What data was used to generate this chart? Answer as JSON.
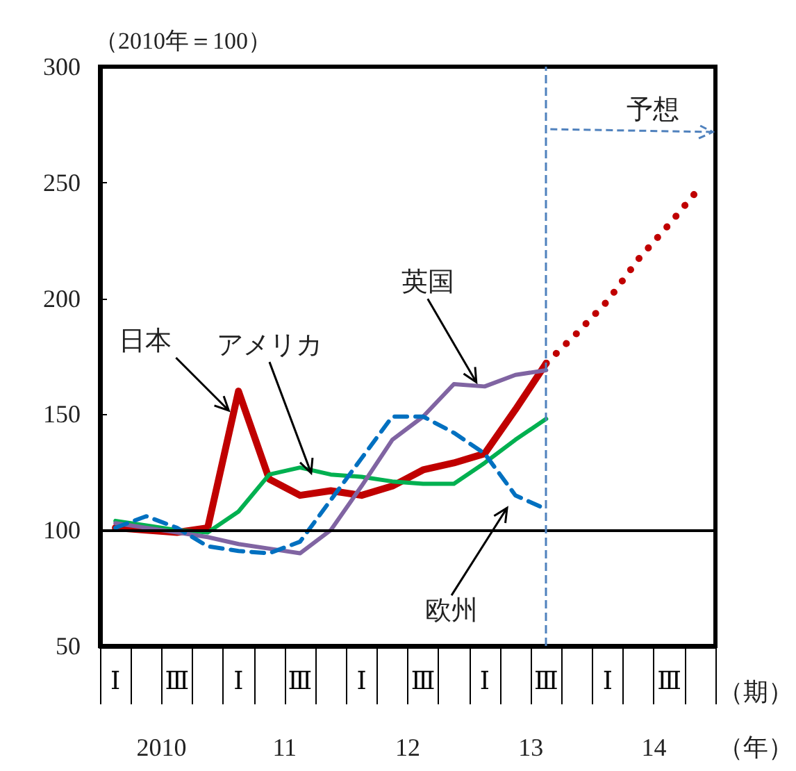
{
  "chart_data": {
    "type": "line",
    "ylabel": "（2010年＝100）",
    "xlabel": "（期）",
    "categories": [
      "Ⅰ",
      null,
      "Ⅲ",
      null,
      "Ⅰ",
      null,
      "Ⅲ",
      null,
      "Ⅰ",
      null,
      "Ⅲ",
      null,
      "Ⅰ",
      null,
      "Ⅲ",
      null,
      "Ⅰ",
      null,
      "Ⅲ",
      null
    ],
    "series": [
      {
        "name": "日本",
        "color": "#c00000",
        "values": [
          101,
          100,
          99,
          101,
          160,
          122,
          115,
          117,
          115,
          119,
          126,
          129,
          133,
          152,
          172,
          null,
          null,
          null,
          null,
          null
        ]
      },
      {
        "name": "アメリカ",
        "color": "#00b050",
        "values": [
          104,
          102,
          100,
          99,
          108,
          124,
          127,
          124,
          123,
          121,
          120,
          120,
          129,
          139,
          148,
          null,
          null,
          null,
          null,
          null
        ]
      },
      {
        "name": "英国",
        "color": "#8064a2",
        "values": [
          103,
          101,
          99,
          97,
          94,
          92,
          90,
          100,
          119,
          139,
          149,
          163,
          162,
          167,
          169,
          null,
          null,
          null,
          null,
          null
        ]
      },
      {
        "name": "欧州",
        "color": "#0070c0",
        "line_style": "dashed",
        "values": [
          101,
          106,
          101,
          93,
          91,
          90,
          95,
          113,
          131,
          149,
          149,
          142,
          133,
          115,
          109,
          null,
          null,
          null,
          null,
          null
        ]
      },
      {
        "color": "#c00000",
        "line_style": "dotted",
        "values": [
          null,
          null,
          null,
          null,
          null,
          null,
          null,
          null,
          null,
          null,
          null,
          null,
          null,
          null,
          172,
          185,
          199,
          217,
          232,
          248
        ]
      }
    ],
    "ylim": [
      50,
      300
    ],
    "yticks": [
      50,
      100,
      150,
      200,
      250,
      300
    ],
    "ref_lines": [
      {
        "axis": "y",
        "value": 100,
        "color": "#000000",
        "line_style": "solid"
      }
    ],
    "annotations": [
      "予想",
      "2010",
      "11",
      "12",
      "13",
      "14",
      "（年）"
    ],
    "marker": "none",
    "grid": false,
    "legend": false
  }
}
